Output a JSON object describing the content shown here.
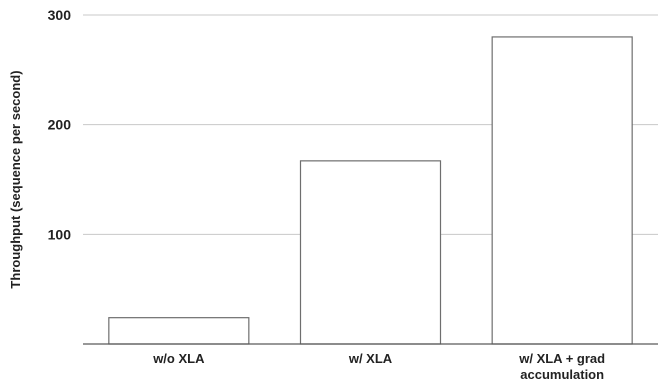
{
  "chart_data": {
    "type": "bar",
    "title": "",
    "xlabel": "",
    "ylabel": "Throughput (sequence per second)",
    "categories": [
      [
        "w/o XLA"
      ],
      [
        "w/ XLA"
      ],
      [
        "w/ XLA + grad",
        "accumulation"
      ]
    ],
    "values": [
      24,
      167,
      280
    ],
    "ylim": [
      0,
      300
    ],
    "yticks": [
      100,
      200,
      300
    ],
    "grid": true,
    "legend": "none",
    "bar_fill": "#ffffff",
    "bar_stroke": "#6e6e6e",
    "grid_color": "#c8c8c8"
  }
}
